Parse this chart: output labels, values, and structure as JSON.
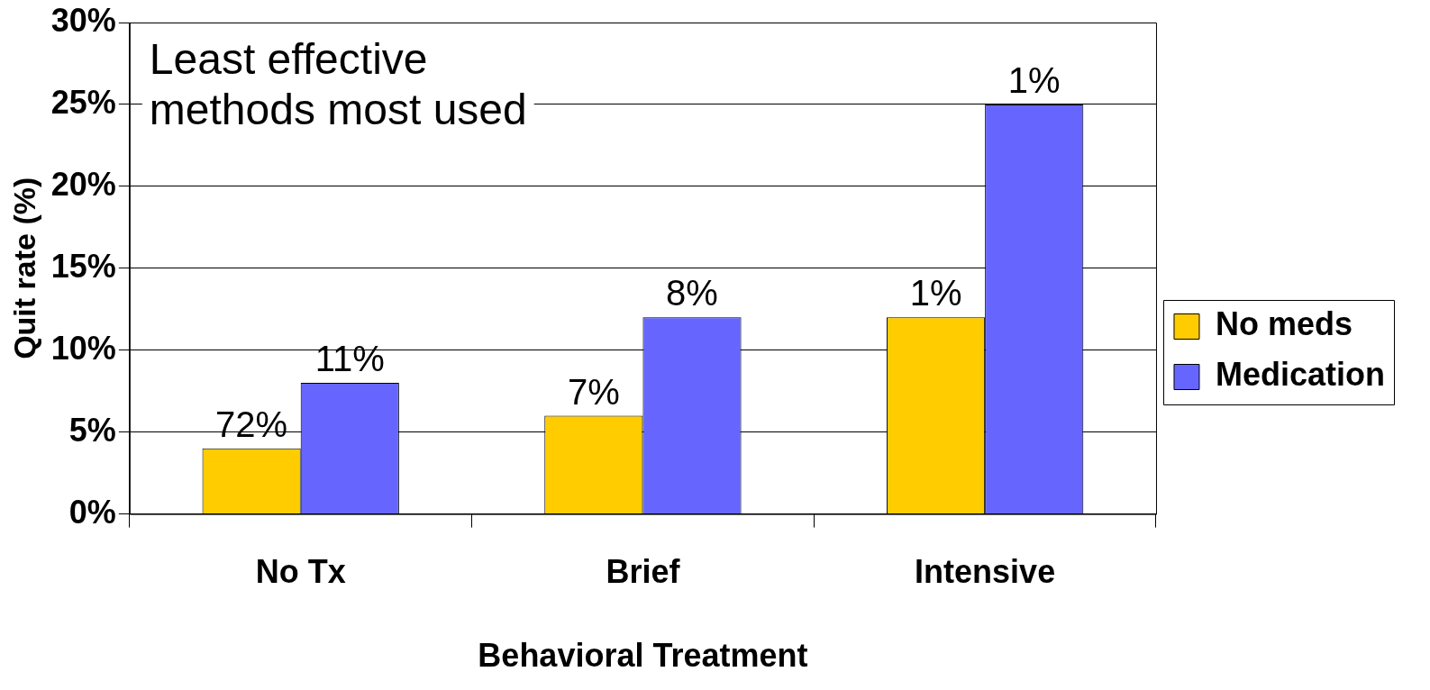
{
  "chart_data": {
    "type": "bar",
    "xlabel": "Behavioral Treatment",
    "ylabel": "Quit rate (%)",
    "categories": [
      "No Tx",
      "Brief",
      "Intensive"
    ],
    "series": [
      {
        "name": "No meds",
        "color": "#ffcc00",
        "values": [
          4,
          6,
          12
        ]
      },
      {
        "name": "Medication",
        "color": "#6666ff",
        "values": [
          8,
          12,
          25
        ]
      }
    ],
    "ylim": [
      0,
      30
    ],
    "yticks": [
      {
        "value": 0,
        "label": "0%"
      },
      {
        "value": 5,
        "label": "5%"
      },
      {
        "value": 10,
        "label": "10%"
      },
      {
        "value": 15,
        "label": "15%"
      },
      {
        "value": 20,
        "label": "20%"
      },
      {
        "value": 25,
        "label": "25%"
      },
      {
        "value": 30,
        "label": "30%"
      }
    ],
    "grid": "y",
    "legend": "right",
    "annotations": [
      "Least effective methods most used",
      {
        "text": "72%",
        "x": "No Tx",
        "y": 4
      },
      {
        "text": "11%",
        "x": "No Tx",
        "y": 8
      },
      {
        "text": "7%",
        "x": "Brief",
        "y": 6
      },
      {
        "text": "8%",
        "x": "Brief",
        "y": 12
      },
      {
        "text": "1%",
        "x": "Intensive",
        "y": 12
      },
      {
        "text": "1%",
        "x": "Intensive",
        "y": 25
      }
    ]
  }
}
